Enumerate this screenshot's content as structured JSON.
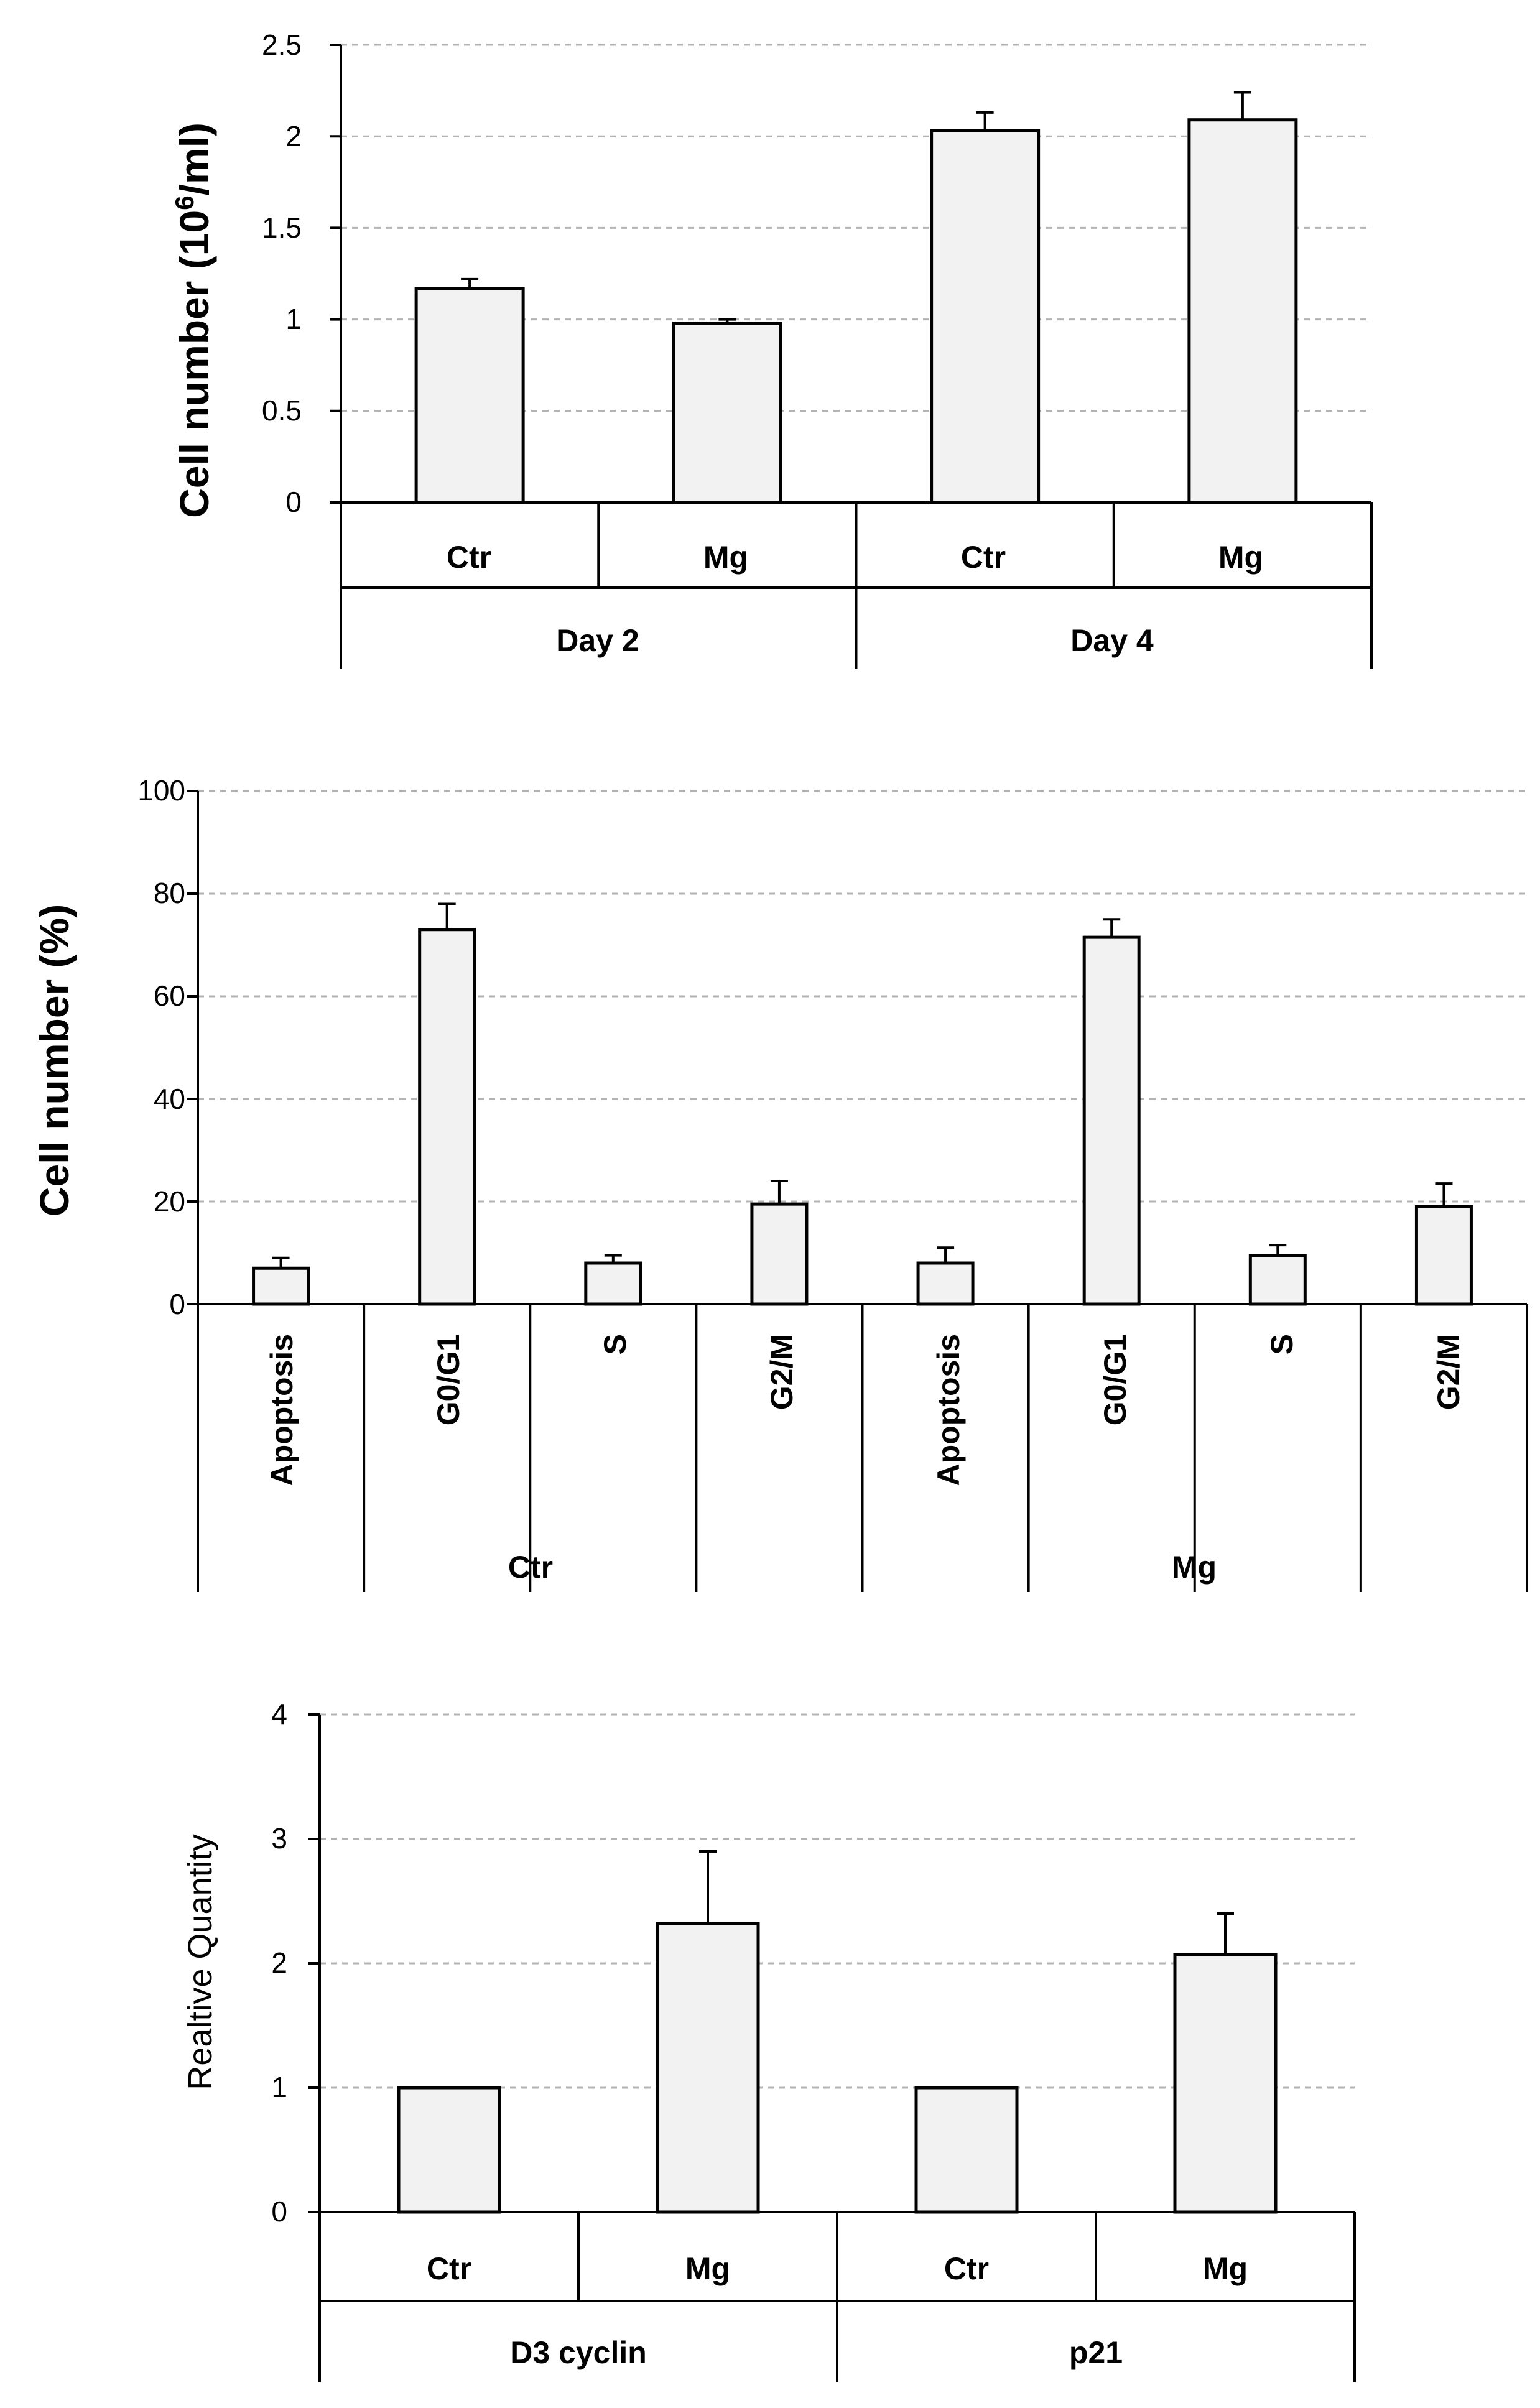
{
  "colors": {
    "bar_fill": "#f2f2f2",
    "bar_stroke": "#000000",
    "grid": "#b3b3b3",
    "axis": "#000000"
  },
  "chart_data": [
    {
      "type": "bar",
      "title": "",
      "ylabel_main": "Cell number (10",
      "ylabel_sup": "6",
      "ylabel_tail": "/ml)",
      "ylim": [
        0,
        2.5
      ],
      "yticks": [
        "0",
        "0.5",
        "1",
        "1.5",
        "2",
        "2.5"
      ],
      "grid": true,
      "groups": [
        "Day 2",
        "Day 4"
      ],
      "categories": [
        "Ctr",
        "Mg",
        "Ctr",
        "Mg"
      ],
      "values": [
        1.17,
        0.98,
        2.03,
        2.09
      ],
      "errors": [
        0.05,
        0.02,
        0.1,
        0.15
      ]
    },
    {
      "type": "bar",
      "title": "",
      "ylabel": "Cell number (%)",
      "ylim": [
        0,
        100
      ],
      "yticks": [
        "0",
        "20",
        "40",
        "60",
        "80",
        "100"
      ],
      "grid": true,
      "groups": [
        "Ctr",
        "Mg"
      ],
      "categories": [
        "Apoptosis",
        "G0/G1",
        "S",
        "G2/M",
        "Apoptosis",
        "G0/G1",
        "S",
        "G2/M"
      ],
      "values": [
        7,
        73,
        8,
        19.5,
        8,
        71.5,
        9.5,
        19
      ],
      "errors": [
        2,
        5,
        1.5,
        4.5,
        3,
        3.5,
        2,
        4.5
      ]
    },
    {
      "type": "bar",
      "title": "",
      "ylabel": "Realtive Quantity",
      "ylim": [
        0,
        4
      ],
      "yticks": [
        "0",
        "1",
        "2",
        "3",
        "4"
      ],
      "grid": true,
      "groups": [
        "D3 cyclin",
        "p21"
      ],
      "categories": [
        "Ctr",
        "Mg",
        "Ctr",
        "Mg"
      ],
      "values": [
        1.0,
        2.32,
        1.0,
        2.07
      ],
      "errors": [
        0,
        0.58,
        0,
        0.33
      ]
    }
  ]
}
